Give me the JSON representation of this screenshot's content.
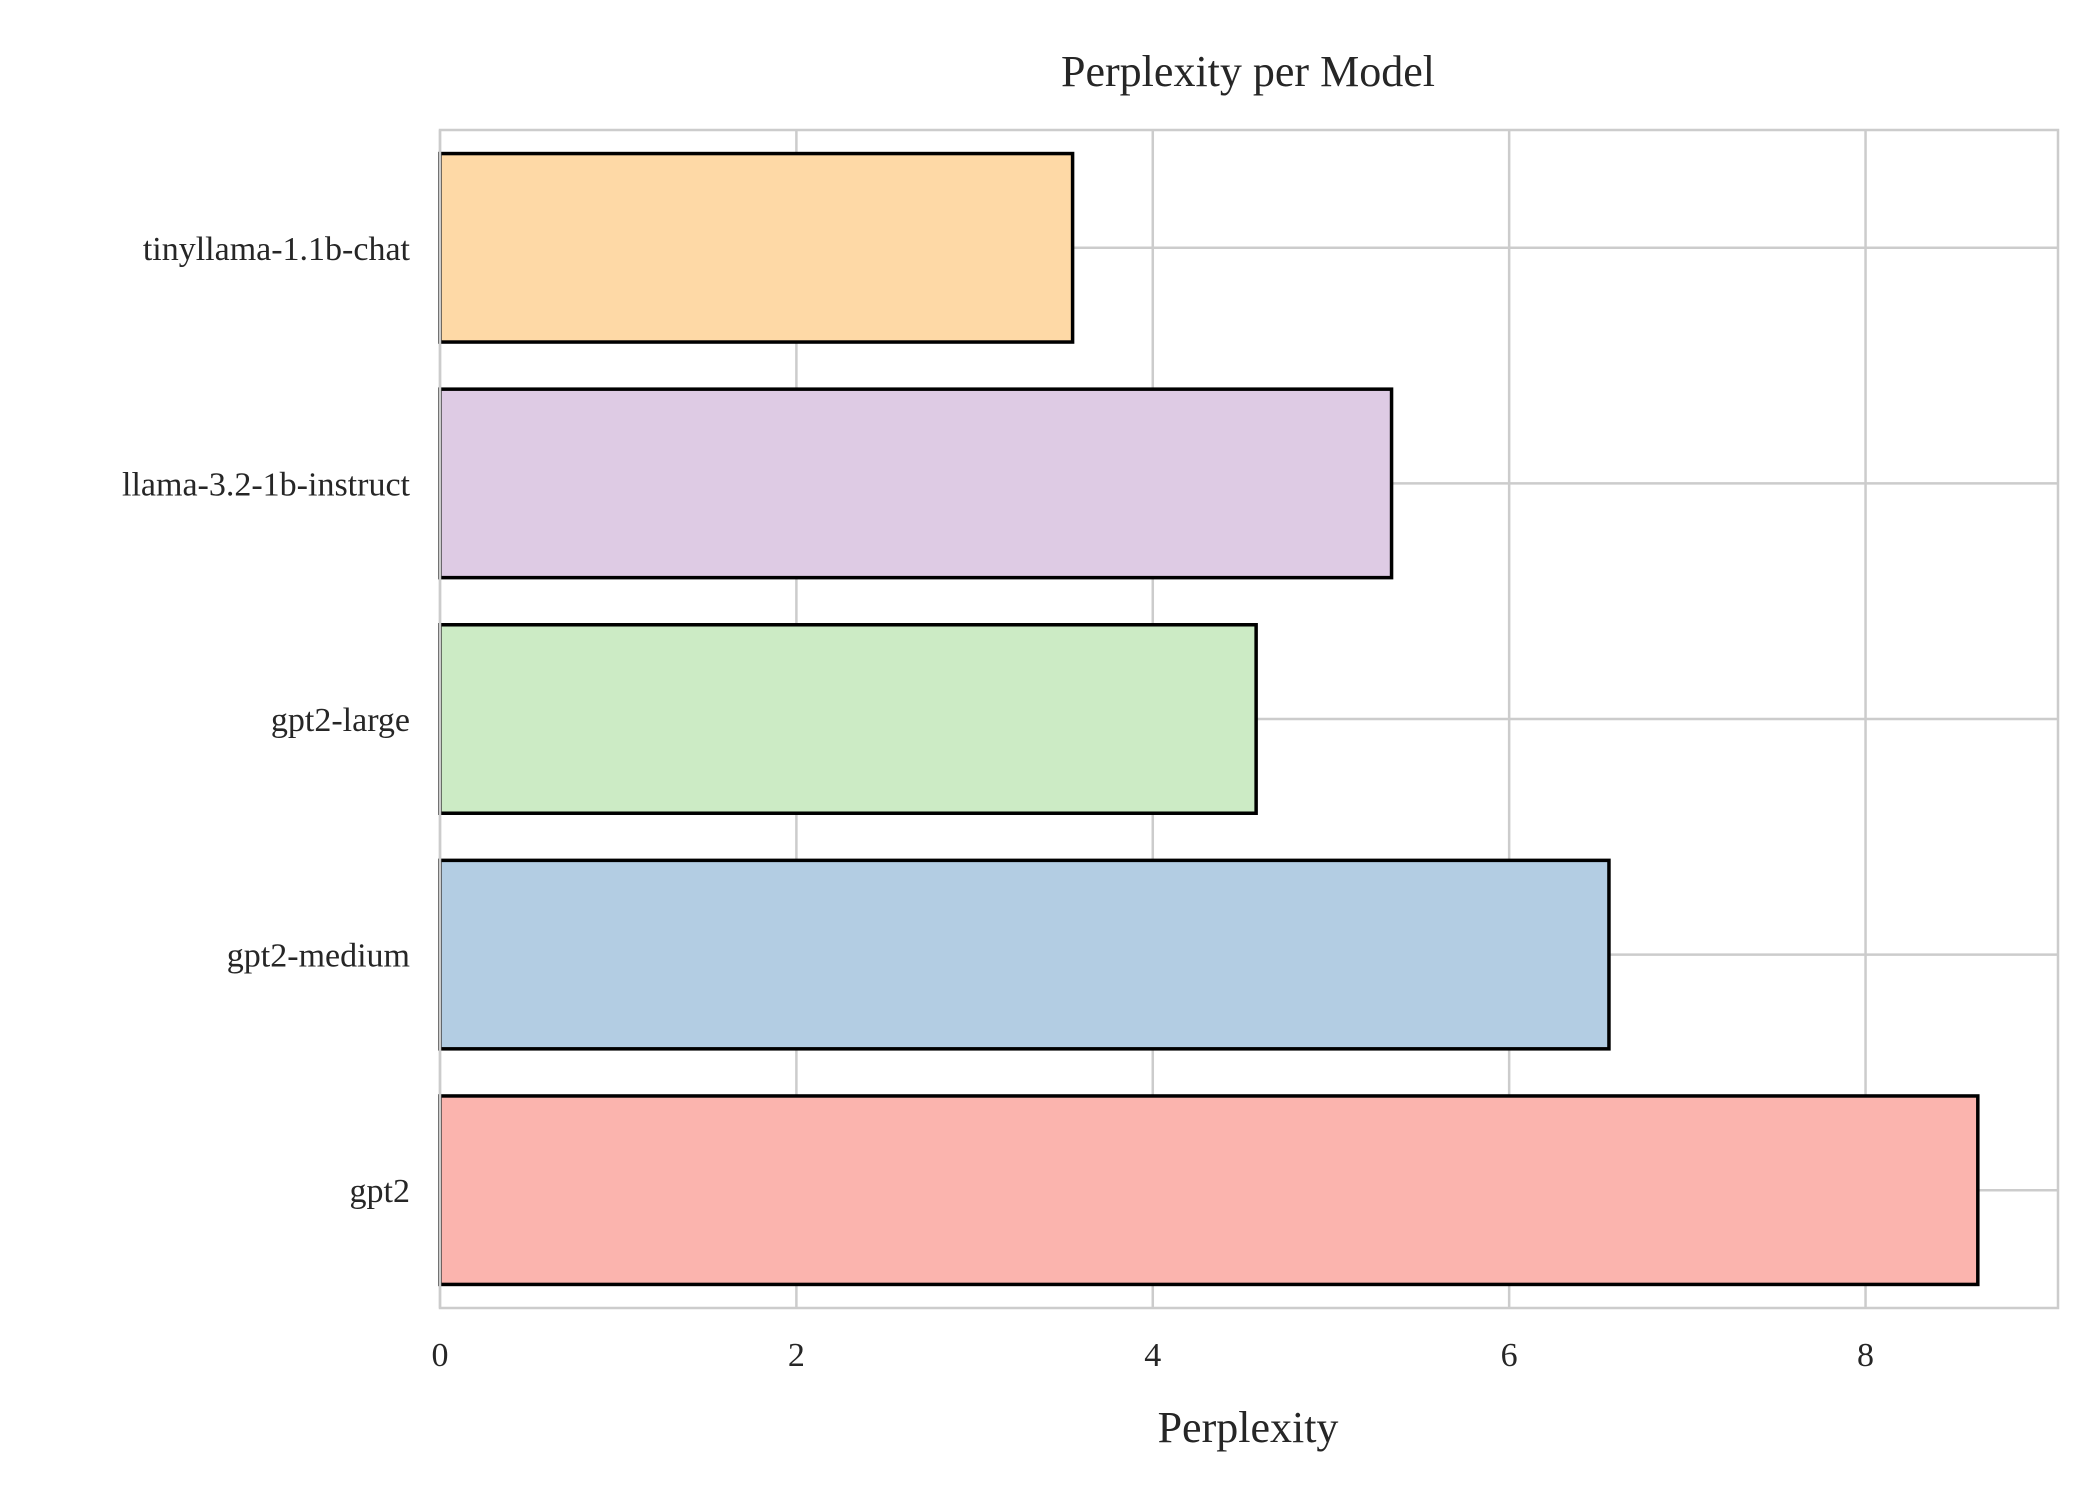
{
  "chart_data": {
    "type": "bar",
    "orientation": "horizontal",
    "title": "Perplexity per Model",
    "xlabel": "Perplexity",
    "ylabel": "",
    "categories": [
      "gpt2",
      "gpt2-medium",
      "gpt2-large",
      "llama-3.2-1b-instruct",
      "tinyllama-1.1b-chat"
    ],
    "values": [
      8.63,
      6.56,
      4.58,
      5.34,
      3.55
    ],
    "colors": [
      "#fbb4ae",
      "#b3cde3",
      "#ccebc5",
      "#decbe4",
      "#fed9a6"
    ],
    "xlim": [
      0,
      9.08
    ],
    "xticks": [
      0,
      2,
      4,
      6,
      8
    ],
    "grid": true,
    "legend": "none",
    "edge_color": "#000000",
    "grid_color": "#cccccc"
  }
}
